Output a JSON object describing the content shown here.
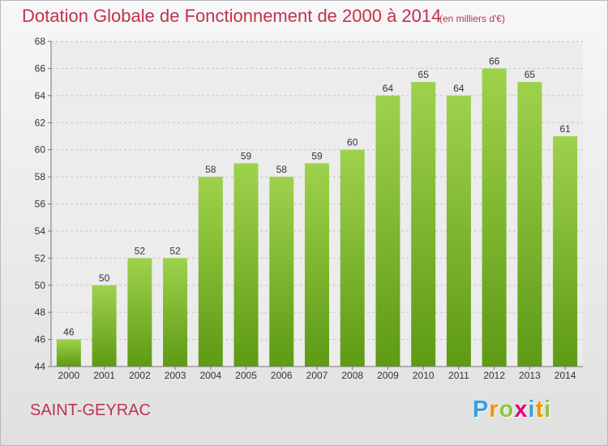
{
  "chart_data": {
    "type": "bar",
    "title": "Dotation Globale de Fonctionnement de 2000 à 2014",
    "subtitle": "(en milliers d'€)",
    "categories": [
      "2000",
      "2001",
      "2002",
      "2003",
      "2004",
      "2005",
      "2006",
      "2007",
      "2008",
      "2009",
      "2010",
      "2011",
      "2012",
      "2013",
      "2014"
    ],
    "values": [
      46,
      50,
      52,
      52,
      58,
      59,
      58,
      59,
      60,
      64,
      65,
      64,
      66,
      65,
      61
    ],
    "ylim": [
      44,
      68
    ],
    "yticks": [
      44,
      46,
      48,
      50,
      52,
      54,
      56,
      58,
      60,
      62,
      64,
      66,
      68
    ],
    "grid": true,
    "bar_color_top": "#9fd24c",
    "bar_color_bottom": "#5e9a14"
  },
  "footer": {
    "commune": "SAINT-GEYRAC",
    "logo_letters": [
      "P",
      "r",
      "o",
      "x",
      "i",
      "t",
      "i"
    ],
    "logo_colors": [
      "#3aa0d8",
      "#f29400",
      "#8cc63f",
      "#e2007a",
      "#3aa0d8",
      "#f29400",
      "#8cc63f"
    ]
  }
}
